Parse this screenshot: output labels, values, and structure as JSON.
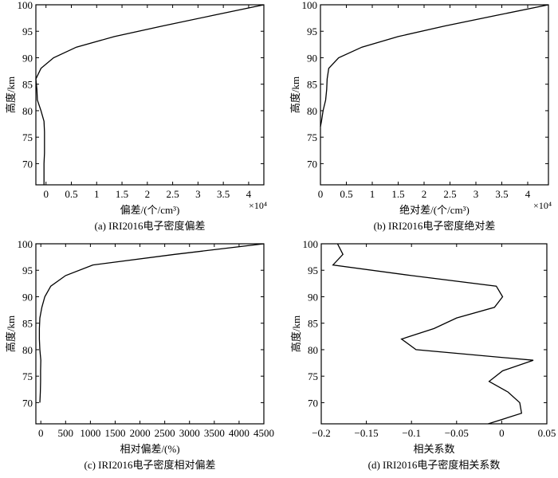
{
  "chart_data": [
    {
      "type": "line",
      "id": "a",
      "xlabel": "偏差/(个/cm³)",
      "ylabel": "高度/km",
      "caption": "(a) IRI2016电子密度偏差",
      "x_multiplier": "×10⁴",
      "xlim": [
        -0.2,
        4.3
      ],
      "ylim": [
        66,
        100
      ],
      "xticks": [
        0,
        0.5,
        1,
        1.5,
        2,
        2.5,
        3,
        3.5,
        4
      ],
      "xtick_labels": [
        "0",
        "0.5",
        "1",
        "1.5",
        "2",
        "2.5",
        "3",
        "3.5",
        "4"
      ],
      "yticks": [
        70,
        75,
        80,
        85,
        90,
        95,
        100
      ],
      "ytick_labels": [
        "70",
        "75",
        "80",
        "85",
        "90",
        "95",
        "100"
      ],
      "y": [
        66,
        68,
        70,
        72,
        74,
        76,
        78,
        80,
        82,
        84,
        86,
        88,
        90,
        92,
        94,
        96,
        98,
        100
      ],
      "x": [
        -0.04,
        -0.04,
        -0.04,
        -0.03,
        -0.03,
        -0.03,
        -0.04,
        -0.1,
        -0.17,
        -0.18,
        -0.2,
        -0.1,
        0.15,
        0.6,
        1.35,
        2.3,
        3.3,
        4.3
      ]
    },
    {
      "type": "line",
      "id": "b",
      "xlabel": "绝对差/(个/cm³)",
      "ylabel": "高度/km",
      "caption": "(b) IRI2016电子密度绝对差",
      "x_multiplier": "×10⁴",
      "xlim": [
        0,
        4.4
      ],
      "ylim": [
        66,
        100
      ],
      "xticks": [
        0,
        0.5,
        1,
        1.5,
        2,
        2.5,
        3,
        3.5,
        4
      ],
      "xtick_labels": [
        "0",
        "0.5",
        "1",
        "1.5",
        "2",
        "2.5",
        "3",
        "3.5",
        "4"
      ],
      "yticks": [
        70,
        75,
        80,
        85,
        90,
        95,
        100
      ],
      "ytick_labels": [
        "70",
        "75",
        "80",
        "85",
        "90",
        "95",
        "100"
      ],
      "y": [
        77,
        78,
        80,
        82,
        84,
        86,
        88,
        90,
        92,
        94,
        96,
        98,
        100
      ],
      "x": [
        0,
        0.02,
        0.05,
        0.1,
        0.12,
        0.13,
        0.16,
        0.35,
        0.8,
        1.5,
        2.4,
        3.4,
        4.4
      ]
    },
    {
      "type": "line",
      "id": "c",
      "xlabel": "相对偏差/(%)",
      "ylabel": "高度/km",
      "caption": "(c) IRI2016电子密度相对偏差",
      "xlim": [
        -100,
        4500
      ],
      "ylim": [
        66,
        100
      ],
      "xticks": [
        0,
        500,
        1000,
        1500,
        2000,
        2500,
        3000,
        3500,
        4000,
        4500
      ],
      "xtick_labels": [
        "0",
        "500",
        "1000",
        "1500",
        "2000",
        "2500",
        "3000",
        "3500",
        "4000",
        "4500"
      ],
      "yticks": [
        70,
        75,
        80,
        85,
        90,
        95,
        100
      ],
      "ytick_labels": [
        "70",
        "75",
        "80",
        "85",
        "90",
        "95",
        "100"
      ],
      "y": [
        70,
        72,
        74,
        76,
        78,
        80,
        82,
        84,
        86,
        88,
        90,
        92,
        94,
        96,
        98,
        100
      ],
      "x": [
        -20,
        -10,
        -5,
        -5,
        0,
        -20,
        -30,
        -30,
        -20,
        20,
        80,
        200,
        500,
        1050,
        2700,
        4500
      ]
    },
    {
      "type": "line",
      "id": "d",
      "xlabel": "相关系数",
      "ylabel": "高度/km",
      "caption": "(d) IRI2016电子密度相关系数",
      "xlim": [
        -0.2,
        0.05
      ],
      "ylim": [
        66,
        100
      ],
      "xticks": [
        -0.2,
        -0.15,
        -0.1,
        -0.05,
        0,
        0.05
      ],
      "xtick_labels": [
        "−0.2",
        "−0.15",
        "−0.1",
        "−0.05",
        "0",
        "0.05"
      ],
      "yticks": [
        70,
        75,
        80,
        85,
        90,
        95,
        100
      ],
      "ytick_labels": [
        "70",
        "75",
        "80",
        "85",
        "90",
        "95",
        "100"
      ],
      "y": [
        66,
        68,
        70,
        72,
        74,
        76,
        78,
        80,
        82,
        84,
        86,
        88,
        90,
        92,
        94,
        96,
        98,
        100
      ],
      "x": [
        -0.015,
        0.022,
        0.02,
        0.007,
        -0.014,
        0.001,
        0.035,
        -0.095,
        -0.111,
        -0.075,
        -0.05,
        -0.008,
        0.001,
        -0.006,
        -0.1,
        -0.187,
        -0.176,
        -0.182
      ]
    }
  ]
}
